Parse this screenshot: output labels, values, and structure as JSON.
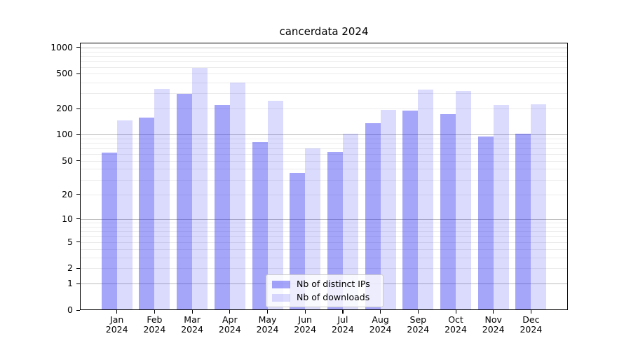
{
  "chart_data": {
    "type": "bar",
    "title": "cancerdata 2024",
    "categories": [
      "Jan",
      "Feb",
      "Mar",
      "Apr",
      "May",
      "Jun",
      "Jul",
      "Aug",
      "Sep",
      "Oct",
      "Nov",
      "Dec"
    ],
    "year": "2024",
    "series": [
      {
        "name": "Nb of distinct IPs",
        "color": "rgba(30,30,240,0.40)",
        "color_hex": "#a6a6f7",
        "values": [
          62,
          158,
          295,
          220,
          82,
          36,
          63,
          136,
          190,
          173,
          95,
          103
        ]
      },
      {
        "name": "Nb of downloads",
        "color": "rgba(30,30,240,0.16)",
        "color_hex": "#d8d8fb",
        "values": [
          147,
          335,
          585,
          398,
          245,
          70,
          102,
          192,
          330,
          318,
          220,
          222
        ]
      }
    ],
    "yscale": "log1p",
    "xlabel": "",
    "ylabel": "",
    "yticks": [
      0,
      1,
      2,
      5,
      10,
      20,
      50,
      100,
      200,
      500,
      1000
    ],
    "major_gridlines": [
      1,
      10,
      100,
      1000
    ],
    "minor_gridlines": [
      2,
      3,
      4,
      5,
      6,
      7,
      8,
      9,
      20,
      30,
      40,
      50,
      60,
      70,
      80,
      90,
      200,
      300,
      400,
      500,
      600,
      700,
      800,
      900
    ],
    "ylim": [
      0,
      1100
    ],
    "grid": true,
    "legend_position": "lower center"
  }
}
